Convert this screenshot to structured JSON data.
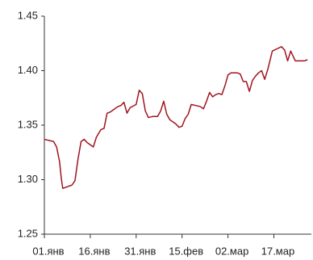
{
  "chart_data": {
    "type": "line",
    "x": [
      0,
      3,
      4,
      5,
      5.5,
      6,
      8,
      9,
      10,
      11,
      12,
      13,
      14,
      16,
      17,
      18.5,
      19.5,
      20.5,
      21.5,
      22.5,
      24,
      25,
      26,
      27,
      28,
      30,
      31,
      32,
      33,
      34,
      35.5,
      37,
      38,
      39,
      40,
      41,
      43,
      44,
      45,
      46,
      47,
      48,
      49.5,
      51,
      52,
      53,
      54,
      55,
      56,
      57,
      58,
      59,
      60,
      61,
      63,
      64,
      65,
      66,
      67,
      68,
      69,
      70,
      71,
      72,
      73,
      74.5,
      76,
      77.5,
      78.5,
      79.5,
      80.5,
      82,
      83.5,
      85,
      86
    ],
    "series": [
      {
        "name": null,
        "color": "#a0141e",
        "values": [
          1.337,
          1.335,
          1.33,
          1.316,
          1.302,
          1.292,
          1.294,
          1.295,
          1.299,
          1.319,
          1.335,
          1.337,
          1.334,
          1.33,
          1.339,
          1.346,
          1.347,
          1.361,
          1.362,
          1.364,
          1.367,
          1.368,
          1.371,
          1.361,
          1.366,
          1.369,
          1.382,
          1.379,
          1.363,
          1.357,
          1.358,
          1.358,
          1.363,
          1.372,
          1.36,
          1.355,
          1.351,
          1.348,
          1.349,
          1.356,
          1.36,
          1.369,
          1.368,
          1.367,
          1.365,
          1.372,
          1.38,
          1.376,
          1.378,
          1.379,
          1.378,
          1.386,
          1.396,
          1.398,
          1.398,
          1.397,
          1.39,
          1.39,
          1.381,
          1.391,
          1.395,
          1.398,
          1.4,
          1.392,
          1.401,
          1.418,
          1.42,
          1.422,
          1.419,
          1.409,
          1.418,
          1.409,
          1.409,
          1.409,
          1.41
        ]
      }
    ],
    "xlim": [
      0,
      87
    ],
    "xticks": [
      {
        "value": 0,
        "label": "01.янв"
      },
      {
        "value": 15,
        "label": "16.янв"
      },
      {
        "value": 30,
        "label": "31.янв"
      },
      {
        "value": 45,
        "label": "15.фев"
      },
      {
        "value": 60,
        "label": "02.мар"
      },
      {
        "value": 75,
        "label": "17.мар"
      }
    ],
    "ylim": [
      1.25,
      1.45
    ],
    "yticks": [
      {
        "value": 1.25,
        "label": "1.25"
      },
      {
        "value": 1.3,
        "label": "1.30"
      },
      {
        "value": 1.35,
        "label": "1.35"
      },
      {
        "value": 1.4,
        "label": "1.40"
      },
      {
        "value": 1.45,
        "label": "1.45"
      }
    ],
    "grid": false
  }
}
